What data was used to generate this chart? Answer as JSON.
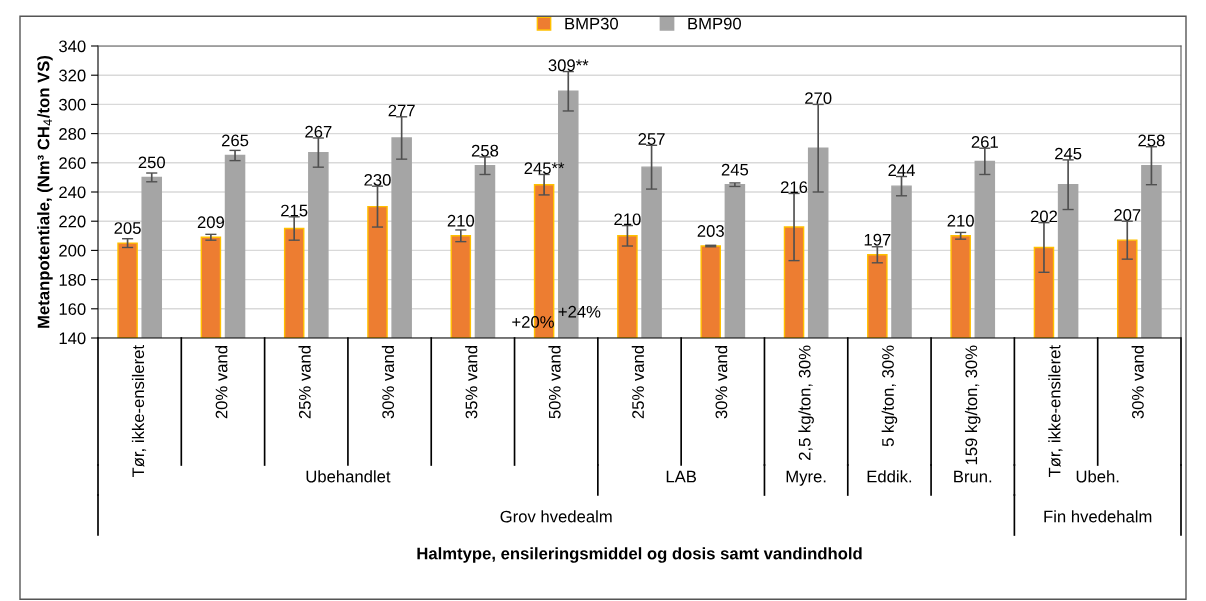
{
  "chart_data": {
    "type": "bar",
    "categories": [
      "Tør, ikke-ensileret",
      "20% vand",
      "25% vand",
      "30% vand",
      "35% vand",
      "50% vand",
      "25% vand",
      "30% vand",
      "2,5 kg/ton, 30%",
      "5 kg/ton, 30%",
      "159 kg/ton, 30%",
      "Tør, ikke-ensileret",
      "30% vand"
    ],
    "series": [
      {
        "name": "BMP30",
        "color": "#ed7d31",
        "values": [
          205,
          209,
          215,
          230,
          210,
          245,
          210,
          203,
          216,
          197,
          210,
          202,
          207
        ],
        "errors": [
          3,
          2,
          8,
          14,
          4,
          7,
          7,
          0.5,
          23,
          5.5,
          2.3,
          17,
          13
        ],
        "value_labels": [
          "205",
          "209",
          "215",
          "230",
          "210",
          "245**",
          "210",
          "203",
          "216",
          "197",
          "210",
          "202",
          "207"
        ]
      },
      {
        "name": "BMP90",
        "color": "#a5a5a5",
        "values": [
          250,
          265,
          267,
          277,
          258,
          309,
          257,
          245,
          270,
          244,
          261,
          245,
          258
        ],
        "errors": [
          3,
          3.5,
          10,
          14.5,
          6,
          13.5,
          15,
          1.2,
          30,
          6.6,
          9,
          17,
          13
        ],
        "value_labels": [
          "250",
          "265",
          "267",
          "277",
          "258",
          "309**",
          "257",
          "245",
          "270",
          "244",
          "261",
          "245",
          "258"
        ]
      }
    ],
    "ylabel": "Metanpotentiale, (Nm³ CH$_{4}$/ton VS)",
    "xlabel": "Halmtype, ensileringsmiddel og dosis samt vandindhold",
    "ylim": [
      140,
      340
    ],
    "yticks": [
      140,
      160,
      180,
      200,
      220,
      240,
      260,
      280,
      300,
      320,
      340
    ],
    "grid": "y",
    "legend": "top",
    "annotations": [
      {
        "text": "+24%",
        "x": "50% vand",
        "y": 157
      },
      {
        "text": "+20%",
        "x": "50% vand",
        "y": 150
      },
      "Ubehandlet",
      "LAB",
      "Myre.",
      "Eddik.",
      "Brun.",
      "Ubeh.",
      "Grov hvedealm",
      "Fin hvedehalm"
    ]
  }
}
